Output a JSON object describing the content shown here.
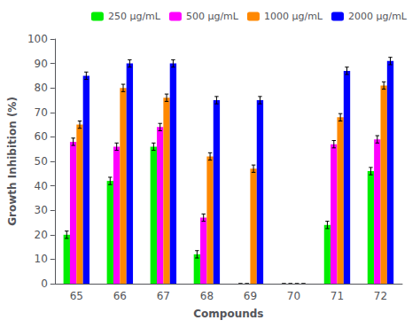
{
  "chart_data": {
    "type": "bar",
    "xlabel": "Compounds",
    "ylabel": "Growth Inhibition (%)",
    "categories": [
      "65",
      "66",
      "67",
      "68",
      "69",
      "70",
      "71",
      "72"
    ],
    "series": [
      {
        "name": "250 μg/mL",
        "color": "#00ee00",
        "values": [
          20,
          42,
          56,
          12,
          0,
          0,
          24,
          46
        ],
        "errors": [
          1.5,
          1.5,
          1.5,
          1.5,
          0,
          0,
          1.5,
          1.5
        ]
      },
      {
        "name": "500 μg/mL",
        "color": "#ff00ff",
        "values": [
          58,
          56,
          64,
          27,
          0,
          0,
          57,
          59
        ],
        "errors": [
          1.5,
          1.5,
          1.5,
          1.5,
          0,
          0,
          1.5,
          1.5
        ]
      },
      {
        "name": "1000 μg/mL",
        "color": "#ff8800",
        "values": [
          65,
          80,
          76,
          52,
          47,
          0,
          68,
          81
        ],
        "errors": [
          1.5,
          1.5,
          1.5,
          1.5,
          1.5,
          0,
          1.5,
          1.5
        ]
      },
      {
        "name": "2000 μg/mL",
        "color": "#0000ff",
        "values": [
          85,
          90,
          90,
          75,
          75,
          0,
          87,
          91
        ],
        "errors": [
          1.5,
          1.5,
          1.5,
          1.5,
          1.5,
          0,
          1.5,
          1.5
        ]
      }
    ],
    "ylim": [
      0,
      100
    ],
    "yticks": [
      0,
      10,
      20,
      30,
      40,
      50,
      60,
      70,
      80,
      90,
      100
    ],
    "grid": false,
    "legend": "upper right"
  }
}
